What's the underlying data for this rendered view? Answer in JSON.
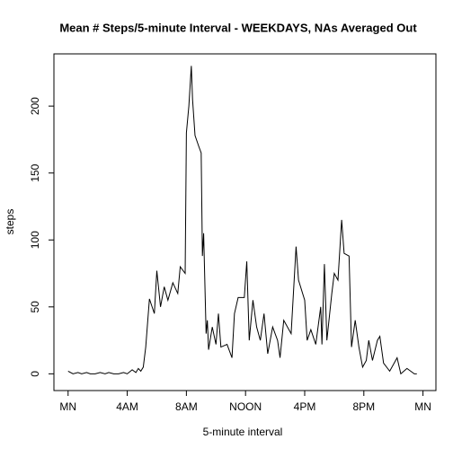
{
  "chart_data": {
    "type": "line",
    "title": "Mean # Steps/5-minute Interval - WEEKDAYS, NAs Averaged Out",
    "xlabel": "5-minute interval",
    "ylabel": "steps",
    "color": "#000000",
    "x": [
      0,
      4,
      8,
      11,
      15,
      18,
      22,
      26,
      30,
      33,
      37,
      41,
      45,
      48,
      52,
      55,
      57,
      59,
      61,
      63,
      66,
      70,
      72,
      75,
      78,
      81,
      85,
      89,
      91,
      95,
      96,
      98,
      100,
      101,
      103,
      106,
      108,
      109,
      110,
      112,
      113,
      114,
      117,
      120,
      122,
      124,
      129,
      133,
      135,
      138,
      143,
      145,
      147,
      150,
      153,
      156,
      159,
      162,
      166,
      170,
      172,
      175,
      181,
      185,
      187,
      192,
      194,
      197,
      201,
      205,
      206,
      208,
      210,
      214,
      216,
      219,
      222,
      224,
      228,
      230,
      233,
      236,
      239,
      242,
      244,
      247,
      251,
      253,
      256,
      261,
      267,
      270,
      275,
      278,
      281,
      283
    ],
    "values": [
      2,
      0,
      1,
      0,
      1,
      0,
      0,
      1,
      0,
      1,
      0,
      0,
      1,
      0,
      3,
      1,
      4,
      2,
      5,
      20,
      56,
      45,
      77,
      50,
      65,
      55,
      68,
      60,
      80,
      75,
      180,
      200,
      230,
      205,
      178,
      170,
      165,
      88,
      105,
      30,
      40,
      18,
      35,
      22,
      45,
      20,
      22,
      12,
      45,
      57,
      57,
      84,
      25,
      55,
      35,
      25,
      45,
      15,
      35,
      25,
      12,
      40,
      30,
      95,
      70,
      55,
      25,
      33,
      22,
      50,
      22,
      82,
      25,
      60,
      75,
      70,
      115,
      90,
      88,
      20,
      40,
      20,
      5,
      10,
      25,
      10,
      25,
      28,
      8,
      2,
      12,
      0,
      4,
      2,
      0,
      0
    ],
    "xlim": [
      -11.5,
      298.5
    ],
    "xticks": [
      {
        "value": 0,
        "label": "MN"
      },
      {
        "value": 48,
        "label": "4AM"
      },
      {
        "value": 96,
        "label": "8AM"
      },
      {
        "value": 144,
        "label": "NOON"
      },
      {
        "value": 192,
        "label": "4PM"
      },
      {
        "value": 240,
        "label": "8PM"
      },
      {
        "value": 288,
        "label": "MN"
      }
    ],
    "ylim": [
      -12.5,
      239
    ],
    "yticks": [
      0,
      50,
      100,
      150,
      200
    ]
  }
}
